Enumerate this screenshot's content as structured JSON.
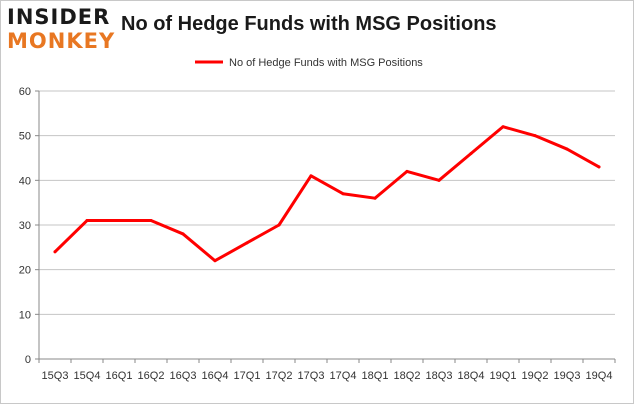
{
  "logo": {
    "line1": "INSIDER",
    "line2": "MONKEY"
  },
  "chart_data": {
    "type": "line",
    "title": "No of Hedge Funds with MSG Positions",
    "categories": [
      "15Q3",
      "15Q4",
      "16Q1",
      "16Q2",
      "16Q3",
      "16Q4",
      "17Q1",
      "17Q2",
      "17Q3",
      "17Q4",
      "18Q1",
      "18Q2",
      "18Q3",
      "18Q4",
      "19Q1",
      "19Q2",
      "19Q3",
      "19Q4"
    ],
    "series": [
      {
        "name": "No of Hedge Funds with MSG Positions",
        "color": "#ff0000",
        "values": [
          24,
          31,
          31,
          31,
          28,
          22,
          26,
          30,
          41,
          37,
          36,
          42,
          40,
          46,
          52,
          50,
          47,
          43
        ]
      }
    ],
    "yticks": [
      "0",
      "10",
      "20",
      "30",
      "40",
      "50",
      "60"
    ],
    "ylim": [
      0,
      60
    ],
    "grid": true,
    "legend_position": "top-center",
    "xlabel": "",
    "ylabel": ""
  }
}
